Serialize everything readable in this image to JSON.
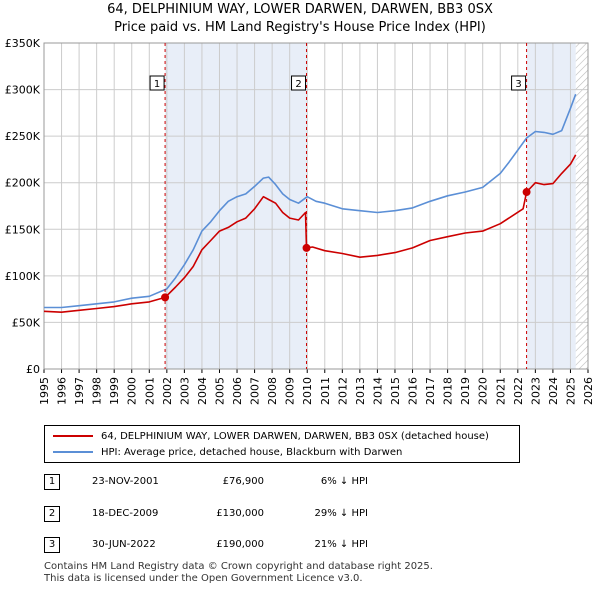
{
  "title_line1": "64, DELPHINIUM WAY, LOWER DARWEN, DARWEN, BB3 0SX",
  "title_line2": "Price paid vs. HM Land Registry's House Price Index (HPI)",
  "chart_data": {
    "type": "line",
    "xlabel": "",
    "ylabel": "",
    "xlim": [
      1995,
      2026
    ],
    "ylim": [
      0,
      350000
    ],
    "yticks": [
      0,
      50000,
      100000,
      150000,
      200000,
      250000,
      300000,
      350000
    ],
    "ytick_labels": [
      "£0",
      "£50K",
      "£100K",
      "£150K",
      "£200K",
      "£250K",
      "£300K",
      "£350K"
    ],
    "xticks": [
      1995,
      1996,
      1997,
      1998,
      1999,
      2000,
      2001,
      2002,
      2003,
      2004,
      2005,
      2006,
      2007,
      2008,
      2009,
      2010,
      2011,
      2012,
      2013,
      2014,
      2015,
      2016,
      2017,
      2018,
      2019,
      2020,
      2021,
      2022,
      2023,
      2024,
      2025,
      2026
    ],
    "grid": true,
    "shaded_periods": [
      [
        2001.9,
        2009.96
      ],
      [
        2022.5,
        2025.3
      ]
    ],
    "hatched_region": [
      2025.3,
      2026
    ],
    "series": [
      {
        "name": "64, DELPHINIUM WAY, LOWER DARWEN, DARWEN, BB3 0SX (detached house)",
        "color": "#cc0000",
        "x": [
          1995,
          1996,
          1997,
          1998,
          1999,
          2000,
          2001,
          2001.9,
          2002.5,
          2003,
          2003.5,
          2004,
          2004.5,
          2005,
          2005.5,
          2006,
          2006.5,
          2007,
          2007.5,
          2007.8,
          2008.2,
          2008.6,
          2009,
          2009.5,
          2009.9,
          2009.96,
          2010.3,
          2011,
          2012,
          2013,
          2014,
          2015,
          2016,
          2017,
          2018,
          2019,
          2020,
          2021,
          2022.3,
          2022.5,
          2023,
          2023.5,
          2024,
          2024.5,
          2025,
          2025.3
        ],
        "y": [
          62000,
          61000,
          63000,
          65000,
          67000,
          70000,
          72000,
          76900,
          88000,
          98000,
          110000,
          128000,
          138000,
          148000,
          152000,
          158000,
          162000,
          172000,
          185000,
          182000,
          178000,
          168000,
          162000,
          160000,
          168000,
          130000,
          131000,
          127000,
          124000,
          120000,
          122000,
          125000,
          130000,
          138000,
          142000,
          146000,
          148000,
          156000,
          172000,
          190000,
          200000,
          198000,
          199000,
          210000,
          220000,
          230000
        ]
      },
      {
        "name": "HPI: Average price, detached house, Blackburn with Darwen",
        "color": "#5b8fd6",
        "x": [
          1995,
          1996,
          1997,
          1998,
          1999,
          2000,
          2001,
          2002,
          2002.5,
          2003,
          2003.5,
          2004,
          2004.5,
          2005,
          2005.5,
          2006,
          2006.5,
          2007,
          2007.5,
          2007.8,
          2008.2,
          2008.6,
          2009,
          2009.5,
          2010,
          2010.5,
          2011,
          2011.5,
          2012,
          2013,
          2014,
          2015,
          2016,
          2017,
          2018,
          2019,
          2020,
          2021,
          2021.5,
          2022,
          2022.5,
          2023,
          2023.5,
          2024,
          2024.5,
          2025,
          2025.3
        ],
        "y": [
          66000,
          66000,
          68000,
          70000,
          72000,
          76000,
          78000,
          86000,
          98000,
          112000,
          128000,
          148000,
          158000,
          170000,
          180000,
          185000,
          188000,
          196000,
          205000,
          206000,
          198000,
          188000,
          182000,
          178000,
          185000,
          180000,
          178000,
          175000,
          172000,
          170000,
          168000,
          170000,
          173000,
          180000,
          186000,
          190000,
          195000,
          210000,
          222000,
          235000,
          248000,
          255000,
          254000,
          252000,
          256000,
          280000,
          295000
        ]
      }
    ],
    "sale_markers": [
      {
        "label": "1",
        "x": 2001.9,
        "y": 76900
      },
      {
        "label": "2",
        "x": 2009.96,
        "y": 130000
      },
      {
        "label": "3",
        "x": 2022.5,
        "y": 190000
      }
    ]
  },
  "legend": {
    "items": [
      {
        "label": "64, DELPHINIUM WAY, LOWER DARWEN, DARWEN, BB3 0SX (detached house)",
        "color": "#cc0000"
      },
      {
        "label": "HPI: Average price, detached house, Blackburn with Darwen",
        "color": "#5b8fd6"
      }
    ]
  },
  "transactions": [
    {
      "num": "1",
      "date": "23-NOV-2001",
      "price": "£76,900",
      "hpi": "6% ↓ HPI"
    },
    {
      "num": "2",
      "date": "18-DEC-2009",
      "price": "£130,000",
      "hpi": "29% ↓ HPI"
    },
    {
      "num": "3",
      "date": "30-JUN-2022",
      "price": "£190,000",
      "hpi": "21% ↓ HPI"
    }
  ],
  "footer": {
    "line1": "Contains HM Land Registry data © Crown copyright and database right 2025.",
    "line2": "This data is licensed under the Open Government Licence v3.0."
  }
}
